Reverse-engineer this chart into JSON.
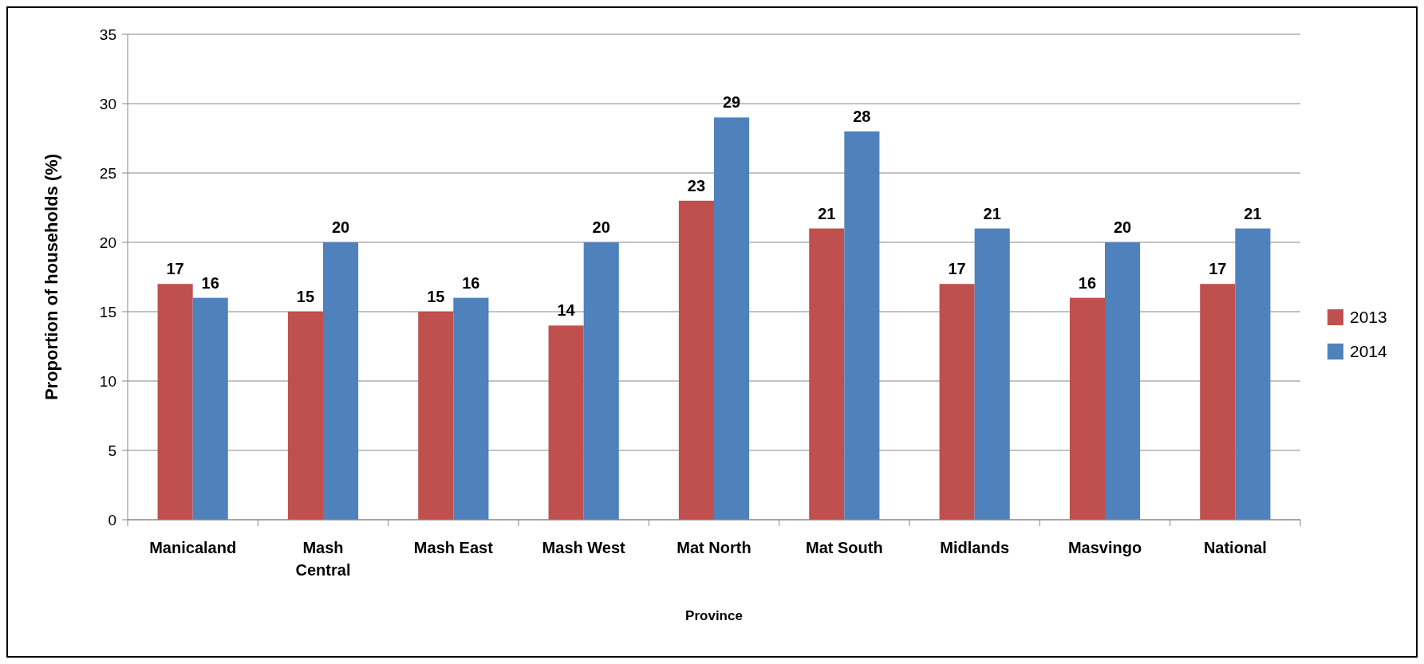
{
  "chart_data": {
    "type": "bar",
    "xlabel": "Province",
    "ylabel": "Proportion of households (%)",
    "categories": [
      "Manicaland",
      "Mash Central",
      "Mash East",
      "Mash West",
      "Mat North",
      "Mat South",
      "Midlands",
      "Masvingo",
      "National"
    ],
    "series": [
      {
        "name": "2013",
        "color": "#c0504d",
        "values": [
          17,
          15,
          15,
          14,
          23,
          21,
          17,
          16,
          17
        ]
      },
      {
        "name": "2014",
        "color": "#4f81bd",
        "values": [
          16,
          20,
          16,
          20,
          29,
          28,
          21,
          20,
          21
        ]
      }
    ],
    "ylim": [
      0,
      35
    ],
    "yticks": [
      0,
      5,
      10,
      15,
      20,
      25,
      30,
      35
    ],
    "grid": "y",
    "legend": "right",
    "data_labels": true
  }
}
